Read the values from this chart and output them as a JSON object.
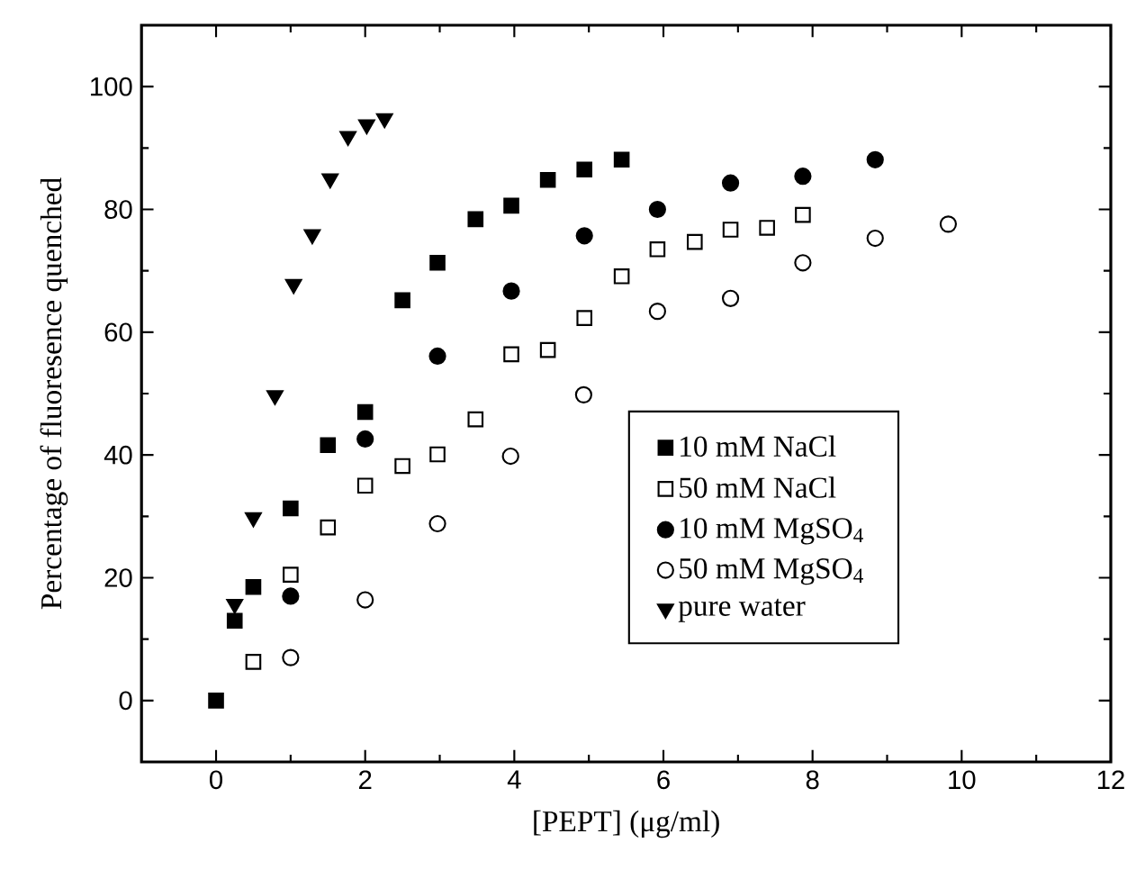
{
  "chart_data": {
    "type": "scatter",
    "xlabel": "[PEPT] (μg/ml)",
    "ylabel": "Percentage of fluoresence quenched",
    "xlim": [
      -1,
      12
    ],
    "xticks": [
      0,
      2,
      4,
      6,
      8,
      10,
      12
    ],
    "ylim": [
      -10,
      110
    ],
    "yticks": [
      0,
      20,
      40,
      60,
      80,
      100
    ],
    "legend": "right",
    "grid": false,
    "series": [
      {
        "name": "10 mM NaCl",
        "color": "#000000",
        "marker": "square",
        "x": [
          0,
          0.25,
          0.5,
          1,
          1.5,
          2,
          2.5,
          2.97,
          3.48,
          3.96,
          4.45,
          4.94,
          5.44
        ],
        "values": [
          0,
          13,
          18.5,
          31.3,
          41.6,
          47,
          65.2,
          71.3,
          78.4,
          80.6,
          84.8,
          86.5,
          88.1
        ]
      },
      {
        "name": "50 mM NaCl",
        "color": "#000000",
        "marker": "square",
        "x": [
          0.5,
          1,
          1.5,
          2,
          2.5,
          2.97,
          3.48,
          3.96,
          4.45,
          4.94,
          5.44,
          5.92,
          6.42,
          6.9,
          7.39,
          7.87
        ],
        "values": [
          6.3,
          20.5,
          28.2,
          35,
          38.2,
          40.1,
          45.8,
          56.4,
          57.1,
          62.3,
          69.1,
          73.5,
          74.7,
          76.7,
          77,
          79.1
        ]
      },
      {
        "name": "10 mM MgSO$_{4}$",
        "color": "#000000",
        "marker": "circle",
        "x": [
          1,
          2,
          2.97,
          3.96,
          4.94,
          5.92,
          6.9,
          7.87,
          8.84
        ],
        "values": [
          17,
          42.6,
          56.1,
          66.7,
          75.7,
          80,
          84.3,
          85.4,
          88.1
        ]
      },
      {
        "name": "50 mM MgSO$_{4}$",
        "color": "#000000",
        "marker": "circle",
        "x": [
          1,
          2,
          2.97,
          3.95,
          4.93,
          5.92,
          6.9,
          7.87,
          8.84,
          9.82
        ],
        "values": [
          7,
          16.4,
          28.8,
          39.8,
          49.8,
          63.4,
          65.5,
          71.3,
          75.3,
          77.6
        ]
      },
      {
        "name": "pure water",
        "color": "#000000",
        "marker": "triangle",
        "x": [
          0.25,
          0.5,
          0.79,
          1.04,
          1.29,
          1.53,
          1.77,
          2.02,
          2.26
        ],
        "values": [
          15.7,
          29.8,
          49.7,
          67.8,
          75.9,
          85,
          91.9,
          93.8,
          94.8
        ]
      }
    ]
  }
}
